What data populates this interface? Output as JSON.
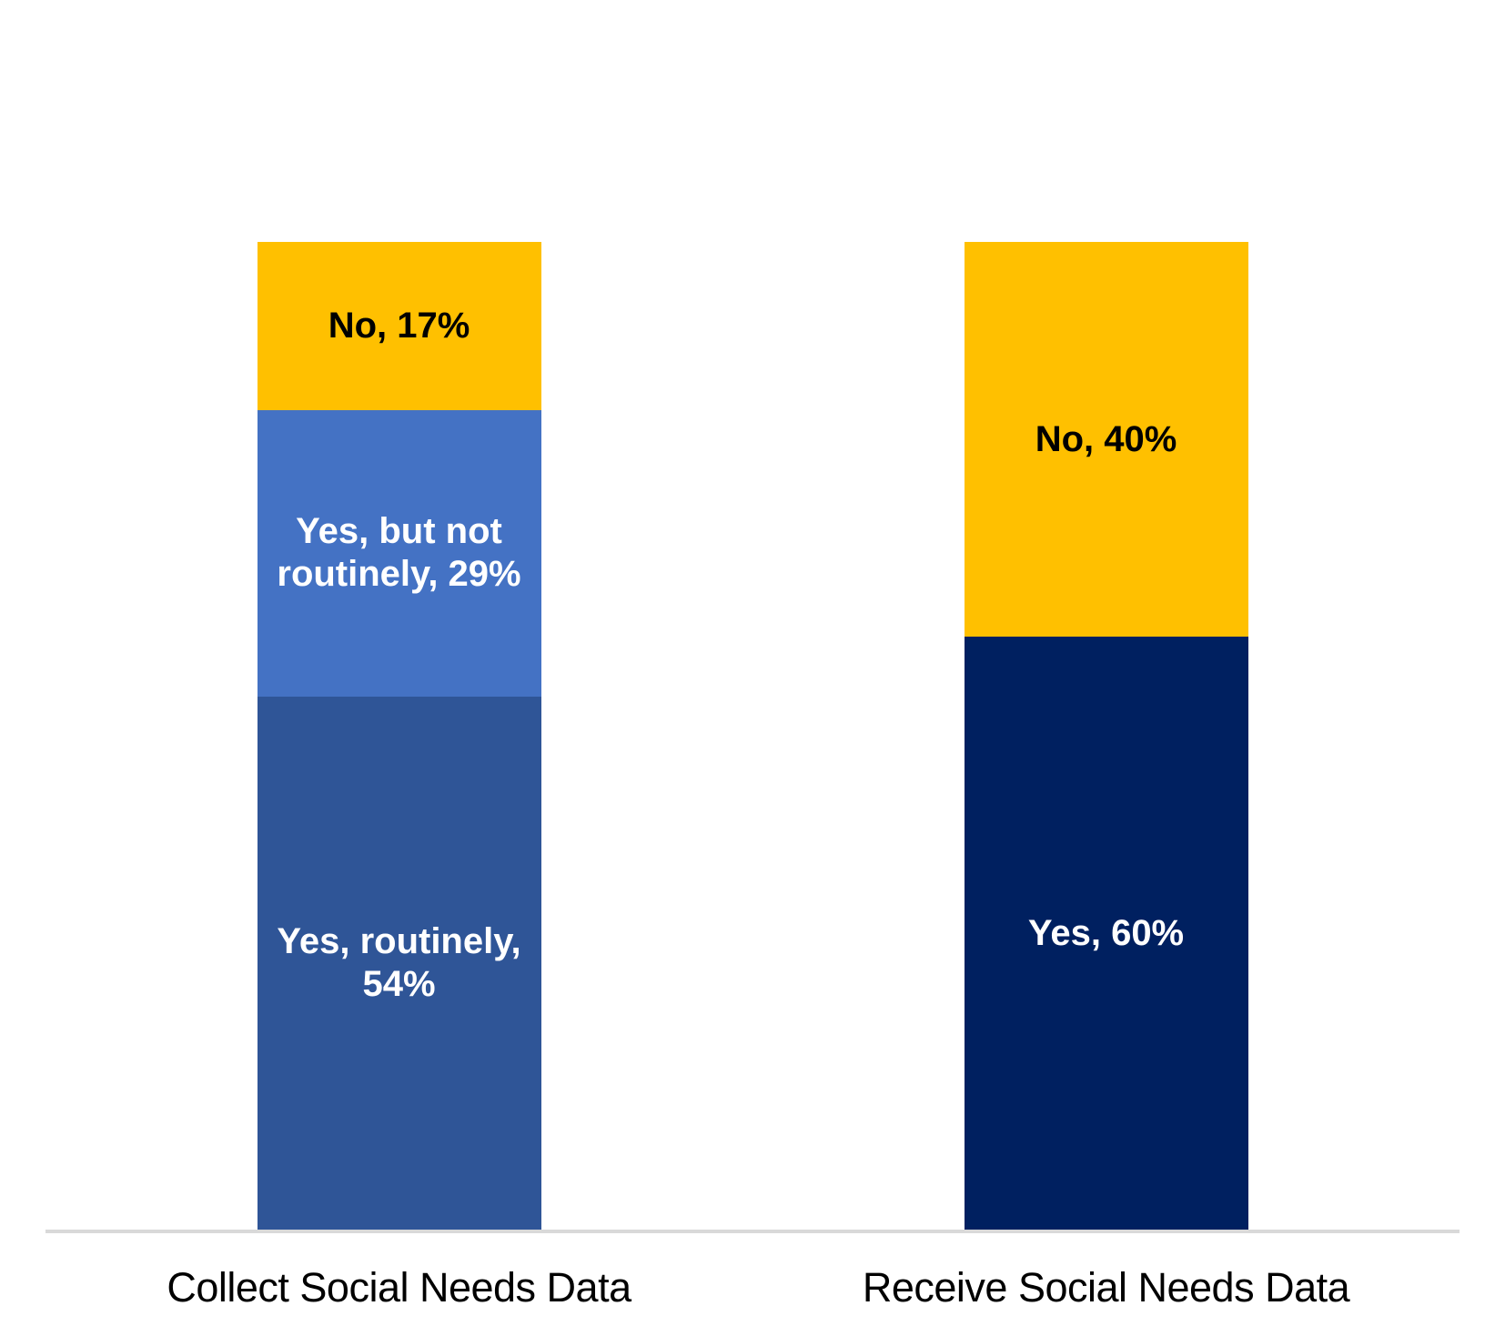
{
  "figure": {
    "background": "#FFFFFF",
    "axis_line_color": "#D9D9D9",
    "category_label_color": "#000000"
  },
  "chart_data": {
    "type": "bar",
    "subtype": "stacked-column-100",
    "title": "",
    "xlabel": "",
    "ylabel": "",
    "ylim": [
      0,
      100
    ],
    "grid": false,
    "legend_position": "none",
    "value_unit": "%",
    "categories": [
      "Collect Social Needs Data",
      "Receive Social Needs Data"
    ],
    "series": [
      {
        "name": "Yes, routinely",
        "values": [
          54,
          null
        ]
      },
      {
        "name": "Yes, but not routinely",
        "values": [
          29,
          null
        ]
      },
      {
        "name": "Yes",
        "values": [
          null,
          60
        ]
      },
      {
        "name": "No",
        "values": [
          17,
          40
        ]
      }
    ],
    "bars": [
      {
        "category": "Collect Social Needs Data",
        "segments_top_to_bottom": [
          {
            "series": "No",
            "value": 17,
            "label": "No, 17%",
            "color": "#FFC000",
            "label_color": "#000000"
          },
          {
            "series": "Yes, but not routinely",
            "value": 29,
            "label": "Yes, but not routinely, 29%",
            "color": "#4472C4",
            "label_color": "#FFFFFF"
          },
          {
            "series": "Yes, routinely",
            "value": 54,
            "label": "Yes, routinely, 54%",
            "color": "#2F5597",
            "label_color": "#FFFFFF"
          }
        ]
      },
      {
        "category": "Receive Social Needs Data",
        "segments_top_to_bottom": [
          {
            "series": "No",
            "value": 40,
            "label": "No, 40%",
            "color": "#FFC000",
            "label_color": "#000000"
          },
          {
            "series": "Yes",
            "value": 60,
            "label": "Yes, 60%",
            "color": "#002060",
            "label_color": "#FFFFFF"
          }
        ]
      }
    ]
  }
}
